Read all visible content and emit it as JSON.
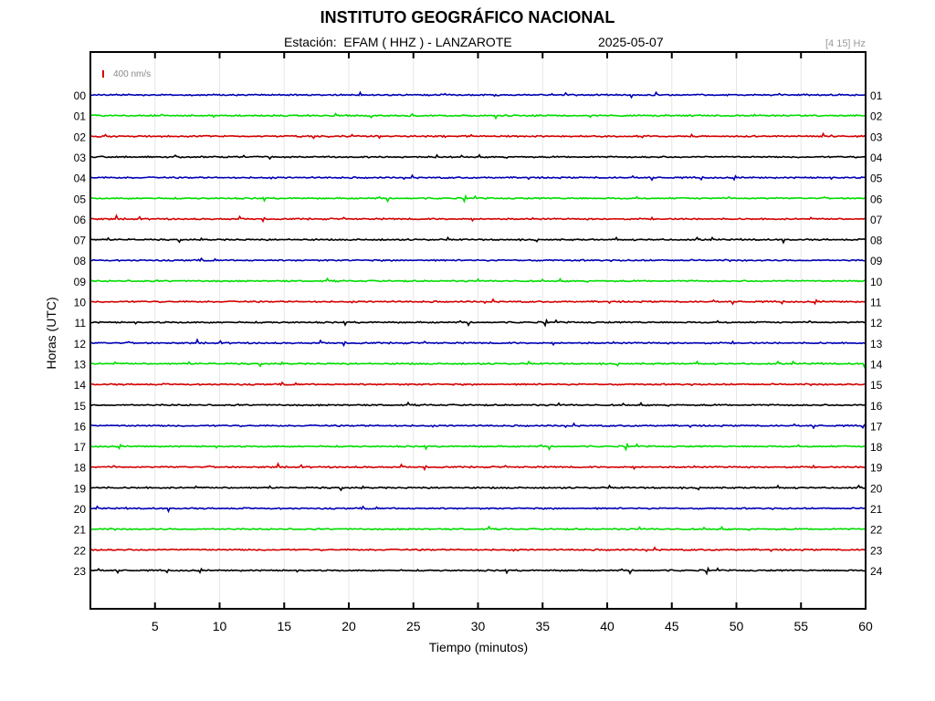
{
  "header": {
    "title": "INSTITUTO GEOGRÁFICO NACIONAL",
    "station_line": "Estación:  EFAM ( HHZ ) - LANZAROTE",
    "date": "2025-05-07",
    "filter": "[4 15] Hz"
  },
  "scale_label": "400 nm/s",
  "colors": {
    "red": "#d40000",
    "green": "#00dd00",
    "blue": "#0000b4",
    "black": "#000000",
    "scale_bar": "#d40000"
  },
  "chart_data": {
    "type": "line",
    "title": "INSTITUTO GEOGRÁFICO NACIONAL",
    "xlabel": "Tiempo (minutos)",
    "ylabel": "Horas (UTC)",
    "xlim": [
      0,
      60
    ],
    "x_ticks": [
      5,
      10,
      15,
      20,
      25,
      30,
      35,
      40,
      45,
      50,
      55,
      60
    ],
    "grid": "vertical",
    "traces": [
      {
        "hour": "00",
        "end_label": "01",
        "color": "blue"
      },
      {
        "hour": "01",
        "end_label": "02",
        "color": "green"
      },
      {
        "hour": "02",
        "end_label": "03",
        "color": "red"
      },
      {
        "hour": "03",
        "end_label": "04",
        "color": "black"
      },
      {
        "hour": "04",
        "end_label": "05",
        "color": "blue"
      },
      {
        "hour": "05",
        "end_label": "06",
        "color": "green"
      },
      {
        "hour": "06",
        "end_label": "07",
        "color": "red"
      },
      {
        "hour": "07",
        "end_label": "08",
        "color": "black"
      },
      {
        "hour": "08",
        "end_label": "09",
        "color": "blue"
      },
      {
        "hour": "09",
        "end_label": "10",
        "color": "green"
      },
      {
        "hour": "10",
        "end_label": "11",
        "color": "red"
      },
      {
        "hour": "11",
        "end_label": "12",
        "color": "black"
      },
      {
        "hour": "12",
        "end_label": "13",
        "color": "blue"
      },
      {
        "hour": "13",
        "end_label": "14",
        "color": "green"
      },
      {
        "hour": "14",
        "end_label": "15",
        "color": "red"
      },
      {
        "hour": "15",
        "end_label": "16",
        "color": "black"
      },
      {
        "hour": "16",
        "end_label": "17",
        "color": "blue"
      },
      {
        "hour": "17",
        "end_label": "18",
        "color": "green"
      },
      {
        "hour": "18",
        "end_label": "19",
        "color": "red"
      },
      {
        "hour": "19",
        "end_label": "20",
        "color": "black"
      },
      {
        "hour": "20",
        "end_label": "21",
        "color": "blue"
      },
      {
        "hour": "21",
        "end_label": "22",
        "color": "green"
      },
      {
        "hour": "22",
        "end_label": "23",
        "color": "red"
      },
      {
        "hour": "23",
        "end_label": "24",
        "color": "black"
      }
    ]
  }
}
